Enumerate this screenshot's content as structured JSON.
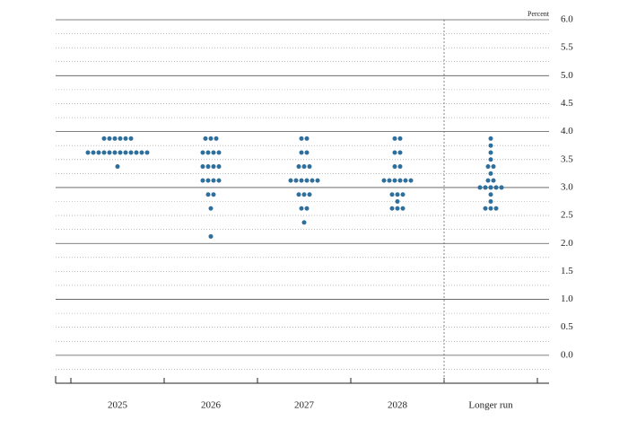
{
  "chart_data": {
    "type": "dot",
    "unit_label": "Percent",
    "ylim": [
      -0.5,
      6.0
    ],
    "yticks": [
      {
        "value": 0,
        "label": "0.0"
      },
      {
        "value": 0.5,
        "label": "0.5"
      },
      {
        "value": 1,
        "label": "1.0"
      },
      {
        "value": 1.5,
        "label": "1.5"
      },
      {
        "value": 2,
        "label": "2.0"
      },
      {
        "value": 2.5,
        "label": "2.5"
      },
      {
        "value": 3,
        "label": "3.0"
      },
      {
        "value": 3.5,
        "label": "3.5"
      },
      {
        "value": 4,
        "label": "4.0"
      },
      {
        "value": 4.5,
        "label": "4.5"
      },
      {
        "value": 5,
        "label": "5.0"
      },
      {
        "value": 5.5,
        "label": "5.5"
      },
      {
        "value": 6,
        "label": "6.0"
      }
    ],
    "color": "#2f6f9c",
    "columns": [
      {
        "label": "2025",
        "values": [
          3.875,
          3.875,
          3.875,
          3.875,
          3.875,
          3.875,
          3.625,
          3.625,
          3.625,
          3.625,
          3.625,
          3.625,
          3.625,
          3.625,
          3.625,
          3.625,
          3.625,
          3.625,
          3.375
        ]
      },
      {
        "label": "2026",
        "values": [
          3.875,
          3.875,
          3.875,
          3.625,
          3.625,
          3.625,
          3.625,
          3.375,
          3.375,
          3.375,
          3.375,
          3.125,
          3.125,
          3.125,
          3.125,
          2.875,
          2.875,
          2.625,
          2.125
        ]
      },
      {
        "label": "2027",
        "values": [
          3.875,
          3.875,
          3.625,
          3.625,
          3.375,
          3.375,
          3.375,
          3.125,
          3.125,
          3.125,
          3.125,
          3.125,
          3.125,
          2.875,
          2.875,
          2.875,
          2.625,
          2.625,
          2.375
        ]
      },
      {
        "label": "2028",
        "values": [
          3.875,
          3.875,
          3.625,
          3.625,
          3.375,
          3.375,
          3.125,
          3.125,
          3.125,
          3.125,
          3.125,
          3.125,
          2.875,
          2.875,
          2.875,
          2.75,
          2.625,
          2.625,
          2.625
        ]
      },
      {
        "label": "Longer run",
        "values": [
          3.875,
          3.75,
          3.625,
          3.5,
          3.375,
          3.375,
          3.25,
          3.125,
          3.125,
          3.0,
          3.0,
          3.0,
          3.0,
          3.0,
          2.875,
          2.75,
          2.625,
          2.625,
          2.625
        ]
      }
    ]
  }
}
